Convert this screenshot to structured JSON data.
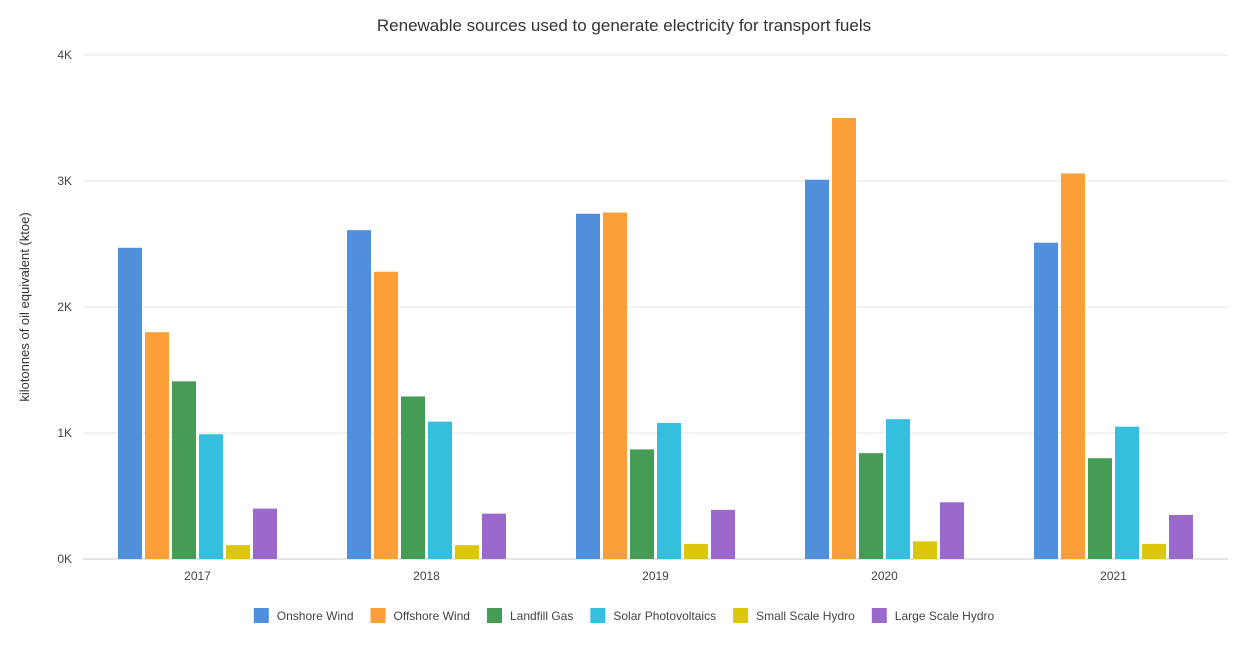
{
  "chart_data": {
    "type": "bar",
    "title": "Renewable sources used to generate electricity for transport fuels",
    "xlabel": "",
    "ylabel": "kilotonnes of oil equivalent (ktoe)",
    "categories": [
      "2017",
      "2018",
      "2019",
      "2020",
      "2021"
    ],
    "ylim": [
      0,
      4000
    ],
    "yticks": [
      0,
      1000,
      2000,
      3000,
      4000
    ],
    "ytick_labels": [
      "0K",
      "1K",
      "2K",
      "3K",
      "4K"
    ],
    "grid": true,
    "legend_position": "bottom",
    "series": [
      {
        "name": "Onshore Wind",
        "color": "#4f8fdc",
        "values": [
          2470,
          2610,
          2740,
          3010,
          2510
        ]
      },
      {
        "name": "Offshore Wind",
        "color": "#fd9f38",
        "values": [
          1800,
          2280,
          2750,
          3500,
          3060
        ]
      },
      {
        "name": "Landfill Gas",
        "color": "#459c55",
        "values": [
          1410,
          1290,
          870,
          840,
          800
        ]
      },
      {
        "name": "Solar Photovoltaics",
        "color": "#35bfdf",
        "values": [
          990,
          1090,
          1080,
          1110,
          1050
        ]
      },
      {
        "name": "Small Scale Hydro",
        "color": "#dcc70b",
        "values": [
          110,
          110,
          120,
          140,
          120
        ]
      },
      {
        "name": "Large Scale Hydro",
        "color": "#9a69cb",
        "values": [
          400,
          360,
          390,
          450,
          350
        ]
      }
    ]
  }
}
